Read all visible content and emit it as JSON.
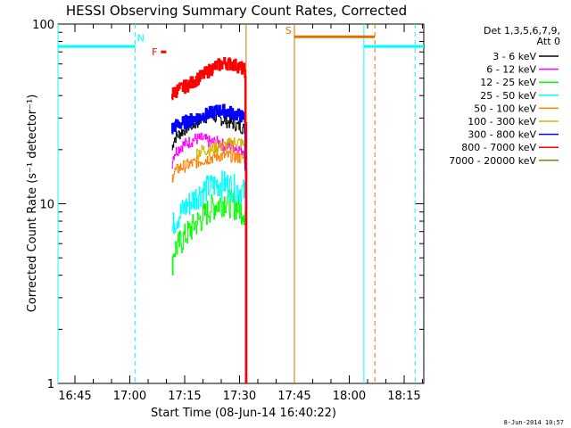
{
  "chart_data": {
    "type": "line",
    "title": "HESSI Observing Summary Count Rates, Corrected",
    "xlabel": "Start Time (08-Jun-14 16:40:22)",
    "ylabel": "Corrected Count Rate (s⁻¹ detector⁻¹)",
    "y_scale": "log",
    "ylim": [
      1,
      100
    ],
    "y_ticks": [
      "1",
      "10",
      "100"
    ],
    "x_ticks": [
      "16:45",
      "17:00",
      "17:15",
      "17:30",
      "17:45",
      "18:00",
      "18:15"
    ],
    "x_tick_minutes": [
      285,
      300,
      315,
      330,
      345,
      360,
      375
    ],
    "xlim_minutes": [
      280.37,
      380.37
    ],
    "data_start": 311.5,
    "data_end": 331.8,
    "legend_header": [
      "Det 1,3,5,6,7,9,",
      "Att 0"
    ],
    "legend_position": "top-right",
    "series": [
      {
        "name": "3 - 6 keV",
        "color": "#000000",
        "x": [
          311.5,
          312,
          314,
          316,
          318,
          320,
          322,
          324,
          326,
          328,
          330,
          331.5,
          331.8
        ],
        "values": [
          20,
          23,
          25,
          27,
          28,
          30,
          31,
          30,
          29,
          28,
          27,
          26,
          1
        ]
      },
      {
        "name": "6 - 12 keV",
        "color": "#ff00ff",
        "x": [
          311.5,
          312,
          314,
          316,
          318,
          320,
          322,
          324,
          326,
          328,
          330,
          331.5,
          331.8
        ],
        "values": [
          17,
          19,
          21,
          22,
          23,
          23,
          22,
          22,
          21,
          21,
          20,
          20,
          1
        ]
      },
      {
        "name": "12 - 25 keV",
        "color": "#00ff00",
        "x": [
          311.5,
          312,
          314,
          316,
          318,
          320,
          322,
          324,
          326,
          328,
          330,
          331.5,
          331.8
        ],
        "values": [
          4.5,
          5.5,
          6.2,
          7,
          7.8,
          8.5,
          9.5,
          10,
          10.5,
          10,
          9.5,
          9,
          1
        ]
      },
      {
        "name": "25 - 50 keV",
        "color": "#00ffff",
        "x": [
          311.5,
          312,
          314,
          316,
          318,
          320,
          322,
          324,
          326,
          328,
          330,
          331.5,
          331.8
        ],
        "values": [
          7,
          8,
          9,
          10,
          11,
          12,
          12.5,
          13,
          13,
          12.5,
          12,
          11.5,
          1
        ]
      },
      {
        "name": "50 - 100 keV",
        "color": "#ff8000",
        "x": [
          311.5,
          312,
          314,
          316,
          318,
          320,
          322,
          324,
          326,
          328,
          330,
          331.5,
          331.8
        ],
        "values": [
          14,
          15,
          16,
          16.5,
          17,
          17.5,
          18,
          18.5,
          18.5,
          18.5,
          18,
          18,
          1
        ]
      },
      {
        "name": "100 - 300 keV",
        "color": "#d4b300",
        "x": [
          318,
          320,
          322,
          324,
          326,
          328,
          330,
          331.5
        ],
        "values": [
          19,
          20,
          20,
          21,
          21,
          22,
          22,
          21
        ]
      },
      {
        "name": "300 - 800 keV",
        "color": "#0000ff",
        "x": [
          311.5,
          312,
          314,
          316,
          318,
          320,
          322,
          324,
          326,
          328,
          330,
          331.5,
          331.8
        ],
        "values": [
          26,
          27,
          28,
          29,
          30,
          31,
          32,
          33,
          33,
          32,
          31,
          30,
          1
        ]
      },
      {
        "name": "800 - 7000 keV",
        "color": "#ff0000",
        "x": [
          311.5,
          312,
          314,
          316,
          318,
          320,
          322,
          324,
          326,
          328,
          330,
          331.5,
          331.8
        ],
        "values": [
          40,
          42,
          44,
          46,
          49,
          52,
          56,
          59,
          61,
          60,
          58,
          55,
          1
        ]
      },
      {
        "name": "7000 - 20000 keV",
        "color": "#808000",
        "x": [],
        "values": []
      }
    ],
    "state_bars": [
      {
        "label": "N",
        "color": "#00ffff",
        "x_start": 280.37,
        "x_end": 301.5,
        "y": 75
      },
      {
        "label": "N",
        "color": "#00ffff",
        "x_start": 364.0,
        "x_end": 380.37,
        "y": 75
      },
      {
        "label": "S",
        "color": "#e07000",
        "x_start": 345.0,
        "x_end": 367.0,
        "y": 85
      },
      {
        "label": "F",
        "color": "#ff0000",
        "x_start": 308.5,
        "x_end": 310.0,
        "y": 70
      }
    ],
    "vertical_lines": [
      {
        "x": 280.37,
        "color": "#00ffff",
        "style": "solid"
      },
      {
        "x": 301.5,
        "color": "#00ffff",
        "style": "dashed"
      },
      {
        "x": 331.8,
        "color": "#e07000",
        "style": "solid"
      },
      {
        "x": 345.0,
        "color": "#e07000",
        "style": "solid"
      },
      {
        "x": 364.0,
        "color": "#00ffff",
        "style": "solid"
      },
      {
        "x": 367.0,
        "color": "#e07000",
        "style": "dashed"
      },
      {
        "x": 378.0,
        "color": "#00ffff",
        "style": "dashed"
      }
    ],
    "grid": false
  },
  "footer": {
    "stamp": "8-Jun-2014 10:57"
  }
}
